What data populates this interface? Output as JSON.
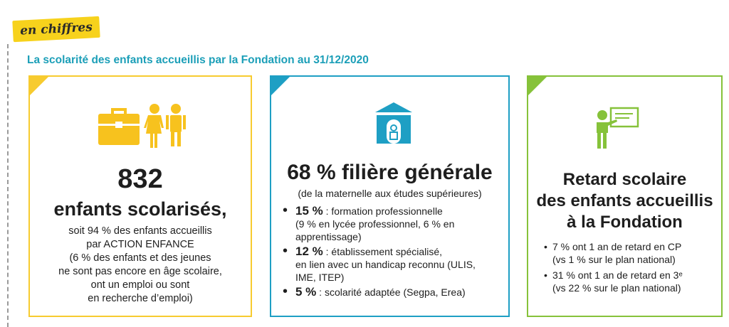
{
  "tag": "en chiffres",
  "heading": "La scolarité des enfants accueillis par la Fondation au 31/12/2020",
  "colors": {
    "yellow": "#f7cb2f",
    "blue": "#1e9fc4",
    "green": "#86c23a",
    "heading": "#1c9fb8"
  },
  "card1": {
    "icons": [
      "briefcase-icon",
      "children-icon"
    ],
    "number": "832",
    "headline": "enfants scolarisés,",
    "lines": [
      "soit 94 % des enfants accueillis",
      "par ACTION ENFANCE",
      "(6 % des enfants et des jeunes",
      "ne sont pas encore en âge scolaire,",
      "ont un emploi ou sont",
      "en recherche d’emploi)"
    ]
  },
  "card2": {
    "icon": "school-building-icon",
    "headline": "68 % filière générale",
    "subtitle": "(de la maternelle aux études supérieures)",
    "items": [
      {
        "value": "15 %",
        "text": " : formation professionnelle",
        "detail": "(9 % en lycée professionnel, 6 % en apprentissage)"
      },
      {
        "value": "12 %",
        "text": " : établissement spécialisé,",
        "detail": "en lien avec un handicap reconnu (ULIS, IME, ITEP)"
      },
      {
        "value": "5 %",
        "text": " : scolarité adaptée (Segpa, Erea)",
        "detail": ""
      }
    ]
  },
  "card3": {
    "icon": "teacher-board-icon",
    "headline_lines": [
      "Retard scolaire",
      "des enfants accueillis",
      "à la Fondation"
    ],
    "items": [
      {
        "line1": "7 % ont 1 an de retard en CP",
        "line2": "(vs 1 % sur le plan national)"
      },
      {
        "line1": "31 % ont 1 an de retard en 3ᵉ",
        "line2": "(vs 22 % sur le plan national)"
      }
    ]
  }
}
